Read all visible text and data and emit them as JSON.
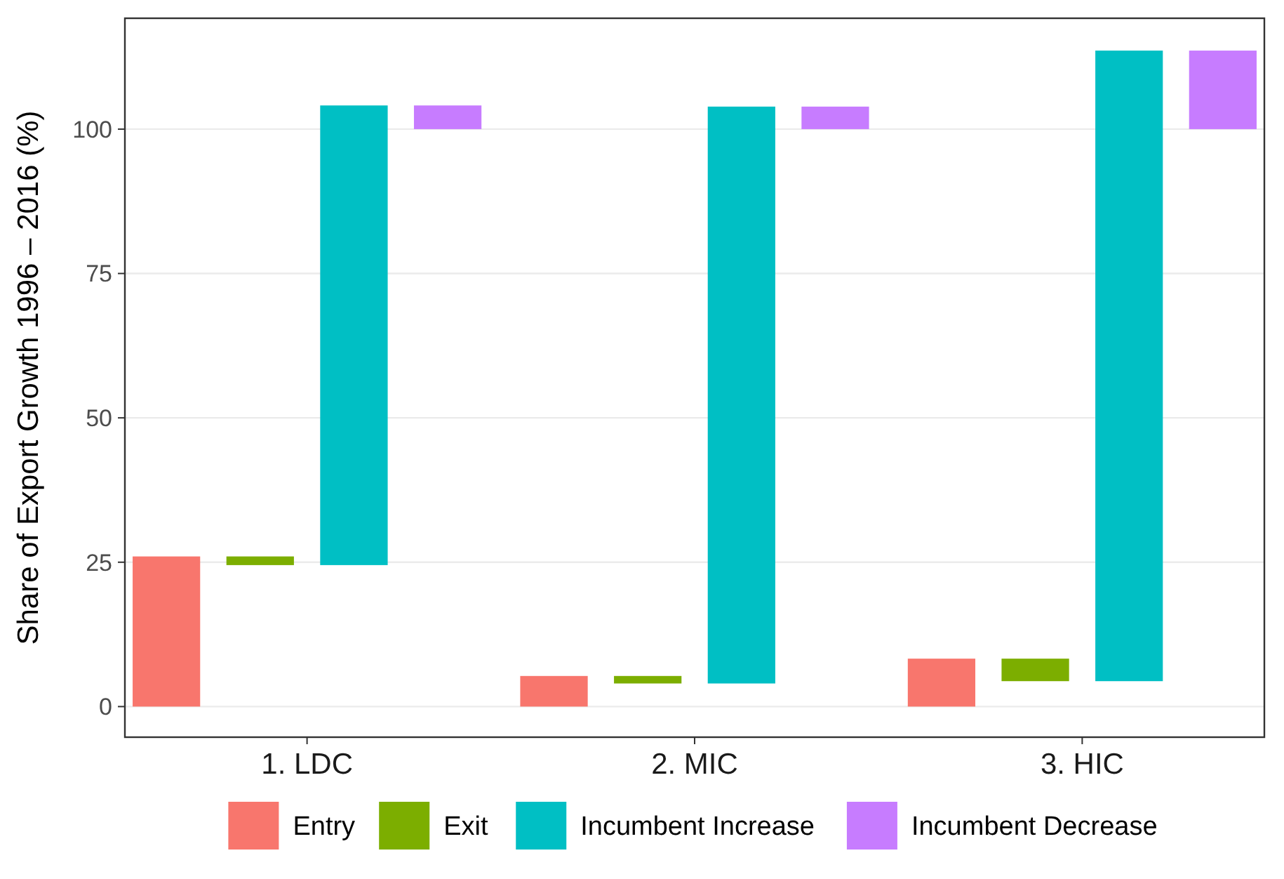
{
  "chart_data": {
    "type": "bar",
    "ylabel": "Share of Export Growth 1996 – 2016 (%)",
    "categories": [
      "1. LDC",
      "2. MIC",
      "3. HIC"
    ],
    "series": [
      {
        "name": "Entry",
        "color": "#f8766d",
        "base": [
          0,
          0,
          0
        ],
        "values": [
          26,
          5.3,
          8.3
        ]
      },
      {
        "name": "Exit",
        "color": "#7cae00",
        "base": [
          26,
          5.3,
          8.3
        ],
        "values": [
          -1.5,
          -1.3,
          -3.9
        ]
      },
      {
        "name": "Incumbent Increase",
        "color": "#00bfc4",
        "base": [
          24.5,
          4,
          4.4
        ],
        "values": [
          79.6,
          99.9,
          109.2
        ]
      },
      {
        "name": "Incumbent Decrease",
        "color": "#c77cff",
        "base": [
          104.1,
          103.9,
          113.6
        ],
        "values": [
          -4.1,
          -3.9,
          -13.6
        ]
      }
    ],
    "ylim": [
      -5.3,
      119.2
    ],
    "yticks": [
      0,
      25,
      50,
      75,
      100
    ],
    "grid": "y",
    "legend": "bottom"
  }
}
